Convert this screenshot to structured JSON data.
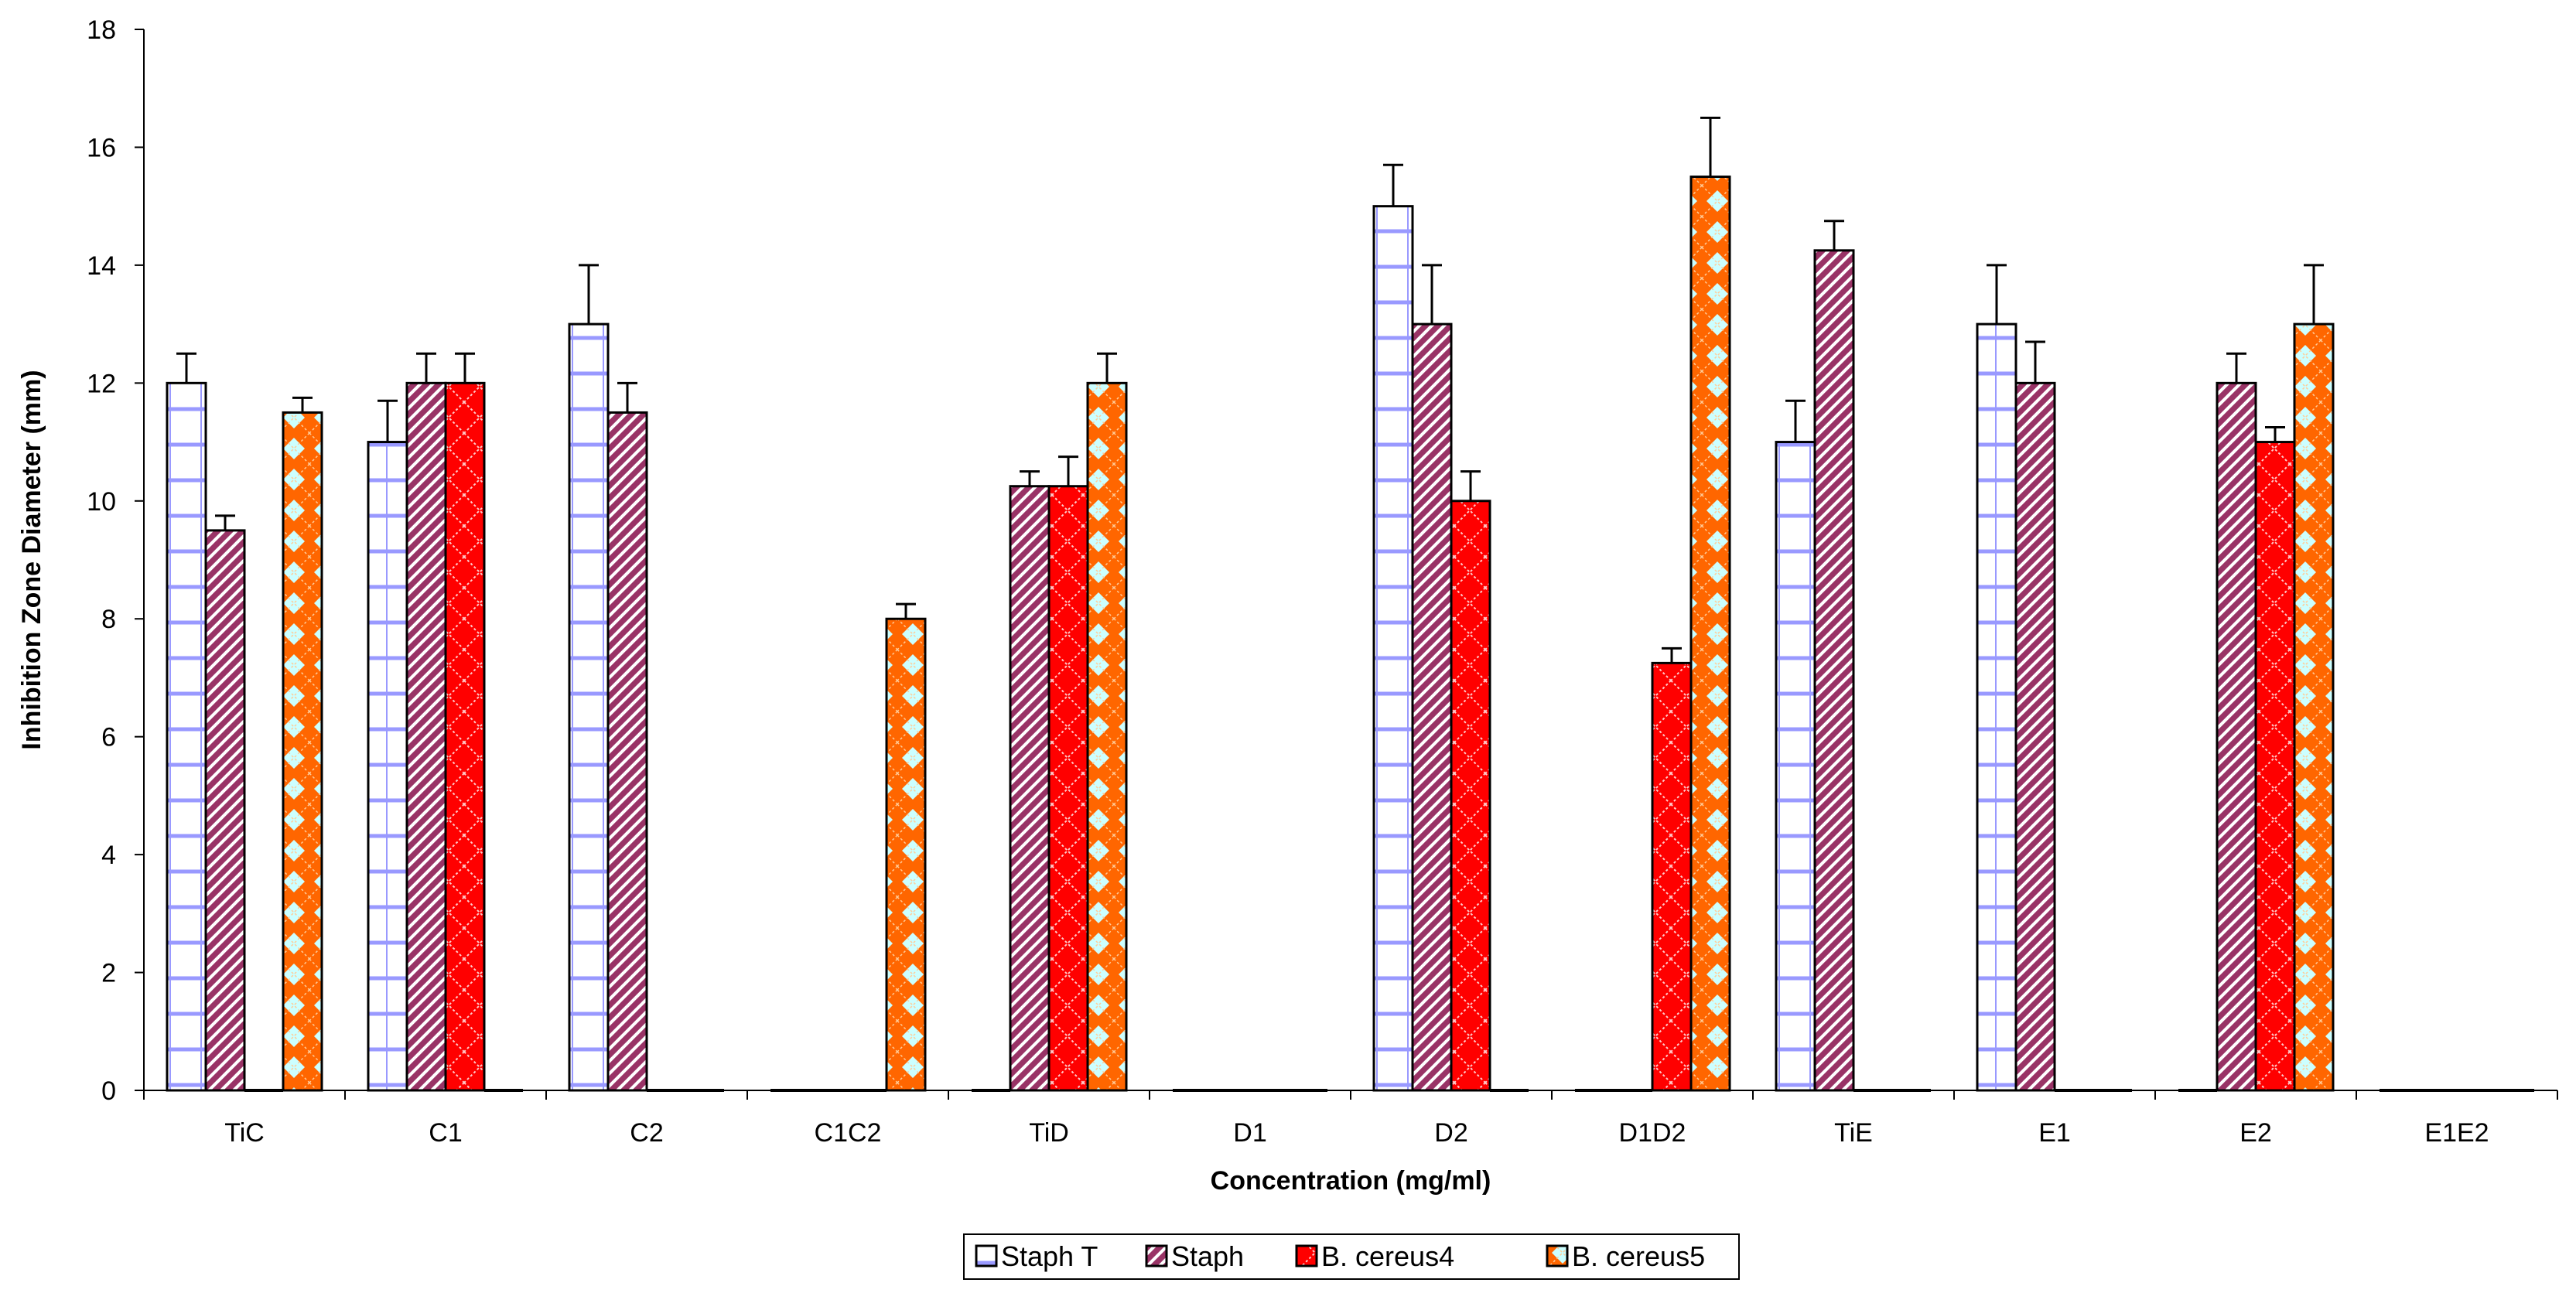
{
  "chart_data": {
    "type": "bar",
    "title": "",
    "xlabel": "Concentration (mg/ml)",
    "ylabel": "Inhibition Zone Diameter (mm)",
    "ylim": [
      0,
      18
    ],
    "yticks": [
      0,
      2,
      4,
      6,
      8,
      10,
      12,
      14,
      16,
      18
    ],
    "grid": false,
    "legend_position": "bottom",
    "categories": [
      "TiC",
      "C1",
      "C2",
      "C1C2",
      "TiD",
      "D1",
      "D2",
      "D1D2",
      "TiE",
      "E1",
      "E2",
      "E1E2"
    ],
    "series": [
      {
        "name": "Staph T",
        "pattern": "horizontal-lines",
        "fill": "#ffffff",
        "stroke_pattern": "#9999ff",
        "values": [
          12,
          11,
          13,
          0,
          0,
          0,
          15,
          0,
          11,
          13,
          0,
          0
        ],
        "errors": [
          0.5,
          0.7,
          1.0,
          0,
          0,
          0,
          0.7,
          0,
          0.7,
          1.0,
          0,
          0
        ]
      },
      {
        "name": "Staph",
        "pattern": "diagonal-stripes",
        "fill": "#993366",
        "stroke_pattern": "#ffffff",
        "values": [
          9.5,
          12,
          11.5,
          0,
          10.25,
          0,
          13,
          0,
          14.25,
          12,
          12,
          0
        ],
        "errors": [
          0.25,
          0.5,
          0.5,
          0,
          0.25,
          0,
          1.0,
          0,
          0.5,
          0.7,
          0.5,
          0
        ]
      },
      {
        "name": "B. cereus4",
        "pattern": "dotted-diamond",
        "fill": "#ff0000",
        "stroke_pattern": "#ffcccc",
        "values": [
          0,
          12,
          0,
          0,
          10.25,
          0,
          10,
          7.25,
          0,
          0,
          11,
          0
        ],
        "errors": [
          0,
          0.5,
          0,
          0,
          0.5,
          0,
          0.5,
          0.25,
          0,
          0,
          0.25,
          0
        ]
      },
      {
        "name": "B. cereus5",
        "pattern": "diamond-checker",
        "fill": "#ff6600",
        "stroke_pattern": "#ccffff",
        "values": [
          11.5,
          0,
          0,
          8,
          12,
          0,
          0,
          15.5,
          0,
          0,
          13,
          0
        ],
        "errors": [
          0.25,
          0,
          0,
          0.25,
          0.5,
          0,
          0,
          1.0,
          0,
          0,
          1.0,
          0
        ]
      }
    ]
  }
}
